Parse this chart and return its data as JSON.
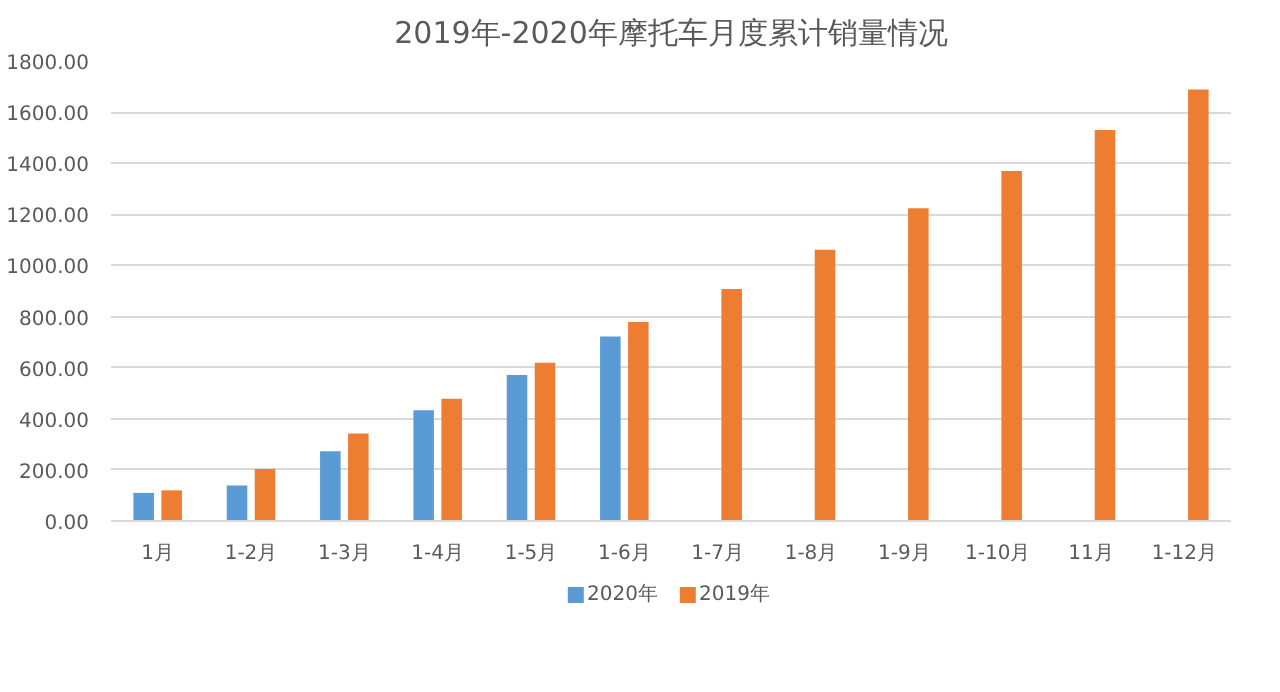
{
  "chart_data": {
    "type": "bar",
    "title": "2019年-2020年摩托车月度累计销量情况",
    "categories": [
      "1月",
      "1-2月",
      "1-3月",
      "1-4月",
      "1-5月",
      "1-6月",
      "1-7月",
      "1-8月",
      "1-9月",
      "1-10月",
      "11月",
      "1-12月"
    ],
    "series": [
      {
        "name": "2020年",
        "color": "#5b9bd5",
        "values": [
          110,
          139,
          273,
          433,
          571,
          722,
          null,
          null,
          null,
          null,
          null,
          null
        ]
      },
      {
        "name": "2019年",
        "color": "#ed7d31",
        "values": [
          120,
          203,
          342,
          478,
          619,
          779,
          908,
          1061,
          1224,
          1370,
          1530,
          1688
        ]
      }
    ],
    "ylim": [
      0,
      1800
    ],
    "yticks": [
      {
        "value": 0,
        "label": "0.00"
      },
      {
        "value": 200,
        "label": "200.00"
      },
      {
        "value": 400,
        "label": "400.00"
      },
      {
        "value": 600,
        "label": "600.00"
      },
      {
        "value": 800,
        "label": "800.00"
      },
      {
        "value": 1000,
        "label": "1000.00"
      },
      {
        "value": 1200,
        "label": "1200.00"
      },
      {
        "value": 1400,
        "label": "1400.00"
      },
      {
        "value": 1600,
        "label": "1600.00"
      },
      {
        "value": 1800,
        "label": "1800.00"
      }
    ],
    "grid": "y",
    "legend": "bottom"
  }
}
